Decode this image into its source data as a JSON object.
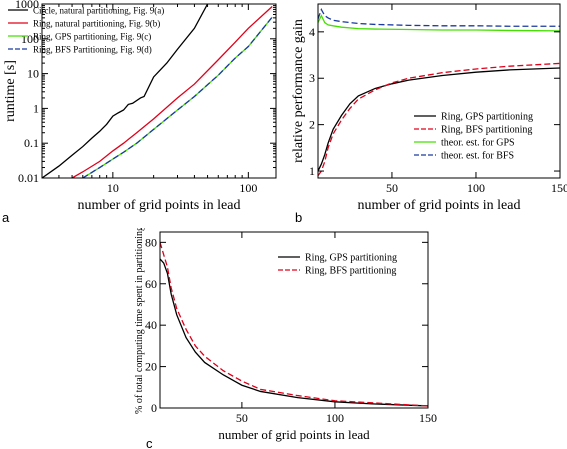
{
  "panels": [
    {
      "letter": "a"
    },
    {
      "letter": "b"
    },
    {
      "letter": "c"
    }
  ],
  "chart_data": [
    {
      "type": "line",
      "xlabel": "number of grid points in lead",
      "ylabel": "runtime [s]",
      "xscale": "log",
      "yscale": "log",
      "xlim": [
        3,
        160
      ],
      "ylim": [
        0.01,
        1000
      ],
      "xticks": [
        {
          "value": 10,
          "label": "10"
        },
        {
          "value": 100,
          "label": "100"
        }
      ],
      "yticks": [
        {
          "value": 0.01,
          "label": "0.01"
        },
        {
          "value": 0.1,
          "label": "0.1"
        },
        {
          "value": 1,
          "label": "1"
        },
        {
          "value": 10,
          "label": "10"
        },
        {
          "value": 100,
          "label": "100"
        },
        {
          "value": 1000,
          "label": "1000"
        }
      ],
      "legend_position": "top-left",
      "series": [
        {
          "name": "Circle, natural partitioning, Fig. 9(a)",
          "color": "#000000",
          "dash": "solid",
          "x": [
            3,
            4,
            5,
            6,
            7,
            8,
            9,
            10,
            11,
            12,
            13,
            14,
            16,
            17,
            20,
            25,
            30,
            40,
            50
          ],
          "y": [
            0.01,
            0.022,
            0.045,
            0.08,
            0.14,
            0.22,
            0.35,
            0.6,
            0.75,
            0.9,
            1.3,
            1.4,
            2.0,
            2.2,
            8,
            20,
            50,
            200,
            1000
          ]
        },
        {
          "name": "Ring, natural partitioning, Fig. 9(b)",
          "color": "#e0001a",
          "dash": "solid",
          "x": [
            5,
            6,
            8,
            10,
            12,
            15,
            20,
            30,
            40,
            60,
            80,
            100,
            150
          ],
          "y": [
            0.01,
            0.015,
            0.03,
            0.06,
            0.1,
            0.2,
            0.5,
            2,
            5,
            25,
            80,
            200,
            850
          ]
        },
        {
          "name": "Ring, GPS partitioning, Fig. 9(c)",
          "color": "#44e000",
          "dash": "solid",
          "x": [
            6,
            8,
            10,
            12,
            15,
            20,
            30,
            40,
            60,
            80,
            100,
            150
          ],
          "y": [
            0.01,
            0.02,
            0.035,
            0.055,
            0.1,
            0.25,
            0.9,
            2.2,
            9,
            28,
            60,
            420
          ]
        },
        {
          "name": "Ring, BFS Partitioning, Fig. 9(d)",
          "color": "#1a3aa0",
          "dash": "dashed",
          "x": [
            6,
            8,
            10,
            12,
            15,
            20,
            30,
            40,
            60,
            80,
            100,
            150
          ],
          "y": [
            0.01,
            0.02,
            0.035,
            0.055,
            0.1,
            0.25,
            0.9,
            2.2,
            9,
            28,
            60,
            420
          ]
        }
      ]
    },
    {
      "type": "line",
      "xlabel": "number of grid points in lead",
      "ylabel": "relative performance gain",
      "xlim": [
        6,
        150
      ],
      "ylim": [
        0.85,
        4.6
      ],
      "xticks": [
        {
          "value": 50,
          "label": "50"
        },
        {
          "value": 100,
          "label": "100"
        },
        {
          "value": 150,
          "label": "150"
        }
      ],
      "yticks": [
        {
          "value": 1,
          "label": "1"
        },
        {
          "value": 2,
          "label": "2"
        },
        {
          "value": 3,
          "label": "3"
        },
        {
          "value": 4,
          "label": "4"
        }
      ],
      "legend_position": "bottom-right",
      "series": [
        {
          "name": "Ring, GPS partitioning",
          "color": "#000000",
          "dash": "solid",
          "x": [
            6,
            8,
            10,
            12,
            15,
            20,
            25,
            30,
            40,
            50,
            60,
            80,
            100,
            120,
            150
          ],
          "y": [
            1.0,
            1.15,
            1.35,
            1.6,
            1.9,
            2.2,
            2.45,
            2.62,
            2.78,
            2.88,
            2.96,
            3.06,
            3.13,
            3.18,
            3.22
          ]
        },
        {
          "name": "Ring, BFS partitioning",
          "color": "#e0001a",
          "dash": "dashed",
          "x": [
            6,
            8,
            10,
            12,
            15,
            20,
            25,
            30,
            40,
            50,
            60,
            80,
            100,
            120,
            150
          ],
          "y": [
            0.9,
            1.0,
            1.2,
            1.5,
            1.8,
            2.1,
            2.35,
            2.55,
            2.75,
            2.9,
            3.0,
            3.12,
            3.2,
            3.26,
            3.32
          ]
        },
        {
          "name": "theor. est. for GPS",
          "color": "#44e000",
          "dash": "solid",
          "x": [
            6,
            8,
            10,
            12,
            15,
            20,
            30,
            40,
            60,
            80,
            100,
            120,
            150
          ],
          "y": [
            4.2,
            4.35,
            4.2,
            4.15,
            4.13,
            4.1,
            4.07,
            4.06,
            4.05,
            4.04,
            4.04,
            4.03,
            4.02
          ]
        },
        {
          "name": "theor. est. for BFS",
          "color": "#1a3aa0",
          "dash": "dashed",
          "x": [
            6,
            8,
            10,
            12,
            15,
            20,
            30,
            40,
            60,
            80,
            100,
            120,
            150
          ],
          "y": [
            4.28,
            4.48,
            4.35,
            4.3,
            4.25,
            4.22,
            4.18,
            4.16,
            4.14,
            4.13,
            4.13,
            4.12,
            4.12
          ]
        }
      ]
    },
    {
      "type": "line",
      "xlabel": "number of grid points in lead",
      "ylabel": "% of total computing time spent in partitioning",
      "xlim": [
        6,
        150
      ],
      "ylim": [
        0,
        85
      ],
      "xticks": [
        {
          "value": 50,
          "label": "50"
        },
        {
          "value": 100,
          "label": "100"
        },
        {
          "value": 150,
          "label": "150"
        }
      ],
      "yticks": [
        {
          "value": 0,
          "label": "0"
        },
        {
          "value": 20,
          "label": "20"
        },
        {
          "value": 40,
          "label": "40"
        },
        {
          "value": 60,
          "label": "60"
        },
        {
          "value": 80,
          "label": "80"
        }
      ],
      "legend_position": "top-right",
      "series": [
        {
          "name": "Ring, GPS partitioning",
          "color": "#000000",
          "dash": "solid",
          "x": [
            6,
            8,
            10,
            12,
            15,
            20,
            25,
            30,
            40,
            50,
            60,
            80,
            100,
            120,
            150
          ],
          "y": [
            72,
            70,
            65,
            55,
            45,
            34,
            27,
            22,
            16,
            11,
            8,
            5,
            3,
            2,
            1
          ]
        },
        {
          "name": "Ring, BFS partitioning",
          "color": "#e0001a",
          "dash": "dashed",
          "x": [
            6,
            8,
            10,
            12,
            15,
            20,
            25,
            30,
            40,
            50,
            60,
            80,
            100,
            120,
            150
          ],
          "y": [
            80,
            74,
            68,
            58,
            48,
            38,
            30,
            25,
            18,
            13,
            9,
            6,
            3.5,
            2.5,
            1
          ]
        }
      ]
    }
  ]
}
